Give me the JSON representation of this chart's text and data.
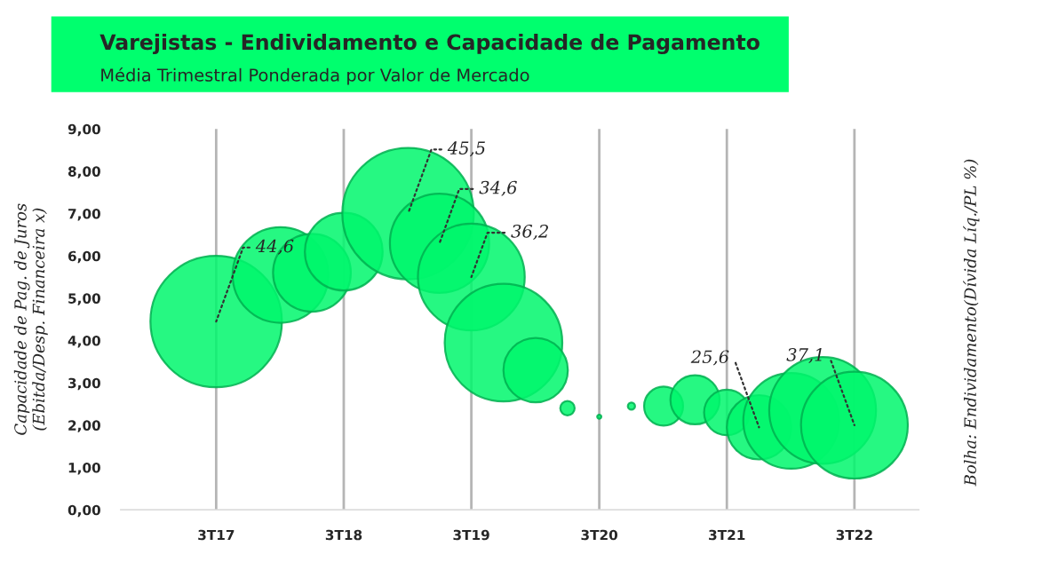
{
  "chart_data": {
    "type": "bubble",
    "title": "Varejistas - Endividamento e Capacidade de Pagamento",
    "subtitle": "Média Trimestral Ponderada por Valor de Mercado",
    "ylabel": "Capacidade de Pag. de Juros\n(Ebitda/Desp. Financeira x)",
    "series": [
      {
        "color": "#00f76c",
        "x": [
          "2017-07",
          "2018-01",
          "2018-04",
          "2018-07",
          "2019-01",
          "2019-04",
          "2019-07",
          "2019-10",
          "2020-01",
          "2020-04",
          "2020-07",
          "2020-10",
          "2021-01",
          "2021-04",
          "2021-07",
          "2021-10",
          "2022-01",
          "2022-04",
          "2022-07"
        ],
        "values": [
          4.45,
          5.55,
          5.6,
          6.1,
          7.0,
          6.3,
          5.5,
          3.95,
          3.3,
          2.4,
          2.2,
          2.45,
          2.45,
          2.6,
          2.3,
          1.95,
          2.1,
          2.35,
          2.0
        ],
        "sizes": [
          1.0,
          0.53,
          0.35,
          0.35,
          1.0,
          0.57,
          0.66,
          0.8,
          0.24,
          0.012,
          0.001,
          0.003,
          0.088,
          0.14,
          0.12,
          0.24,
          0.53,
          0.66,
          0.66
        ]
      }
    ],
    "annotations": [
      {
        "text": "44,6",
        "x": "2017-07",
        "y": 4.45
      },
      {
        "text": "45,5",
        "x": "2019-01",
        "y": 7.0
      },
      {
        "text": "34,6",
        "x": "2019-04",
        "y": 6.3
      },
      {
        "text": "36,2",
        "x": "2019-07",
        "y": 5.5
      },
      {
        "text": "25,6",
        "x": "2021-10",
        "y": 1.95
      },
      {
        "text": "37,1",
        "x": "2022-07",
        "y": 2.0
      },
      "Bolha: Endividamento(Dívida Líq./PL %)"
    ],
    "xlim": [
      "2016-10",
      "2023-01"
    ],
    "xticks": [
      {
        "value": "2017-07",
        "label": "3T17"
      },
      {
        "value": "2018-07",
        "label": "3T18"
      },
      {
        "value": "2019-07",
        "label": "3T19"
      },
      {
        "value": "2020-07",
        "label": "3T20"
      },
      {
        "value": "2021-07",
        "label": "3T21"
      },
      {
        "value": "2022-07",
        "label": "3T22"
      }
    ],
    "ylim": [
      0,
      9
    ],
    "yticks": [
      {
        "value": 0,
        "label": "0,00"
      },
      {
        "value": 1,
        "label": "1,00"
      },
      {
        "value": 2,
        "label": "2,00"
      },
      {
        "value": 3,
        "label": "3,00"
      },
      {
        "value": 4,
        "label": "4,00"
      },
      {
        "value": 5,
        "label": "5,00"
      },
      {
        "value": 6,
        "label": "6,00"
      },
      {
        "value": 7,
        "label": "7,00"
      },
      {
        "value": 8,
        "label": "8,00"
      },
      {
        "value": 9,
        "label": "9,00"
      }
    ],
    "grid": "x"
  }
}
